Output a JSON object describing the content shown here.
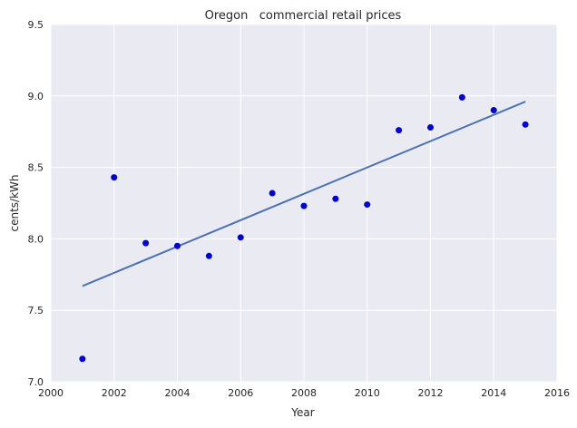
{
  "chart_data": {
    "type": "scatter",
    "title": "Oregon   commercial retail prices",
    "xlabel": "Year",
    "ylabel": "cents/kWh",
    "xlim": [
      2000,
      2016
    ],
    "ylim": [
      7.0,
      9.5
    ],
    "xticks": [
      2000,
      2002,
      2004,
      2006,
      2008,
      2010,
      2012,
      2014,
      2016
    ],
    "xtick_labels": [
      "2000",
      "2002",
      "2004",
      "2006",
      "2008",
      "2010",
      "2012",
      "2014",
      "2016"
    ],
    "yticks": [
      7.0,
      7.5,
      8.0,
      8.5,
      9.0,
      9.5
    ],
    "ytick_labels": [
      "7.0",
      "7.5",
      "8.0",
      "8.5",
      "9.0",
      "9.5"
    ],
    "grid": true,
    "series": [
      {
        "kind": "points",
        "color": "#0000cc",
        "x": [
          2001,
          2002,
          2003,
          2004,
          2005,
          2006,
          2007,
          2008,
          2009,
          2010,
          2011,
          2012,
          2013,
          2014,
          2015
        ],
        "y": [
          7.16,
          8.43,
          7.97,
          7.95,
          7.88,
          8.01,
          8.32,
          8.23,
          8.28,
          8.24,
          8.76,
          8.78,
          8.99,
          8.9,
          8.8
        ]
      },
      {
        "kind": "fit-line",
        "color": "#4c72b0",
        "x": [
          2001,
          2015
        ],
        "y": [
          7.67,
          8.96
        ]
      }
    ],
    "colors": {
      "background": "#eaeaf2",
      "grid": "#ffffff"
    }
  }
}
